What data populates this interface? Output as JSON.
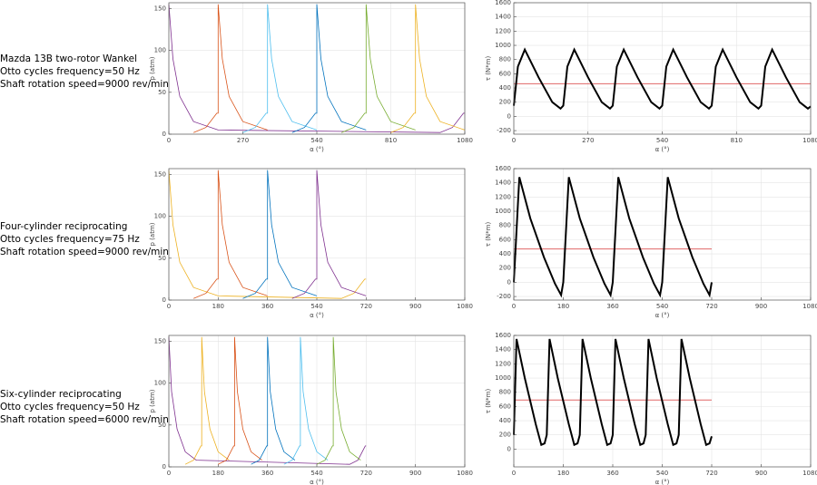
{
  "captions": [
    [
      "Mazda 13B two-rotor Wankel",
      "Otto cycles frequency=50 Hz",
      "Shaft rotation speed=9000 rev/min"
    ],
    [
      "Four-cylinder reciprocating",
      "Otto cycles frequency=75 Hz",
      "Shaft rotation speed=9000 rev/min"
    ],
    [
      "Six-cylinder reciprocating",
      "Otto cycles frequency=50 Hz",
      "Shaft rotation speed=6000 rev/min"
    ]
  ],
  "chart_data": [
    {
      "type": "line",
      "x_label": "α (°)",
      "y_label": "p (atm)",
      "xlim": [
        0,
        1080
      ],
      "ylim": [
        0,
        157
      ],
      "xticks": [
        0,
        270,
        540,
        810,
        1080
      ],
      "yticks": [
        0,
        50,
        100,
        150
      ],
      "grid": true,
      "series": [
        {
          "color": "#7e2f8e",
          "x": [
            0,
            15,
            40,
            90,
            180,
            990,
            1035,
            1075,
            1080
          ],
          "values": [
            155,
            90,
            45,
            15,
            5,
            2,
            8,
            25,
            25
          ]
        },
        {
          "color": "#d95319",
          "x": [
            90,
            135,
            175,
            180,
            180,
            195,
            220,
            270,
            360
          ],
          "values": [
            2,
            8,
            25,
            25,
            155,
            90,
            45,
            15,
            5
          ]
        },
        {
          "color": "#4dbeee",
          "x": [
            270,
            315,
            355,
            360,
            360,
            375,
            400,
            450,
            540
          ],
          "values": [
            2,
            8,
            25,
            25,
            155,
            90,
            45,
            15,
            5
          ]
        },
        {
          "color": "#0072bd",
          "x": [
            450,
            495,
            535,
            540,
            540,
            555,
            580,
            630,
            720
          ],
          "values": [
            2,
            8,
            25,
            25,
            155,
            90,
            45,
            15,
            5
          ]
        },
        {
          "color": "#77ac30",
          "x": [
            630,
            675,
            715,
            720,
            720,
            735,
            760,
            810,
            900
          ],
          "values": [
            2,
            8,
            25,
            25,
            155,
            90,
            45,
            15,
            5
          ]
        },
        {
          "color": "#edb120",
          "x": [
            810,
            855,
            895,
            900,
            900,
            915,
            940,
            990,
            1080
          ],
          "values": [
            2,
            8,
            25,
            25,
            155,
            90,
            45,
            15,
            5
          ]
        }
      ]
    },
    {
      "type": "line",
      "x_label": "α (°)",
      "y_label": "τ (N*m)",
      "xlim": [
        0,
        1080
      ],
      "ylim": [
        -250,
        1600
      ],
      "xticks": [
        0,
        270,
        540,
        810,
        1080
      ],
      "yticks": [
        -200,
        0,
        200,
        400,
        600,
        800,
        1000,
        1200,
        1400,
        1600
      ],
      "grid": true,
      "series": [
        {
          "color": "#e06666",
          "line_width": 1,
          "x": [
            0,
            1080
          ],
          "values": [
            460,
            460
          ]
        },
        {
          "color": "#000000",
          "line_width": 2,
          "x": [
            0,
            15,
            40,
            90,
            140,
            170,
            180,
            195,
            220,
            270,
            320,
            350,
            360,
            375,
            400,
            450,
            500,
            530,
            540,
            555,
            580,
            630,
            680,
            710,
            720,
            735,
            760,
            810,
            860,
            890,
            900,
            915,
            940,
            990,
            1040,
            1070,
            1080
          ],
          "values": [
            150,
            700,
            940,
            550,
            200,
            110,
            150,
            700,
            940,
            550,
            200,
            110,
            150,
            700,
            940,
            550,
            200,
            110,
            150,
            700,
            940,
            550,
            200,
            110,
            150,
            700,
            940,
            550,
            200,
            110,
            150,
            700,
            940,
            550,
            200,
            110,
            140
          ]
        }
      ]
    },
    {
      "type": "line",
      "x_label": "α (°)",
      "y_label": "p (atm)",
      "xlim": [
        0,
        1080
      ],
      "ylim": [
        0,
        157
      ],
      "xticks": [
        0,
        180,
        360,
        540,
        720,
        900,
        1080
      ],
      "yticks": [
        0,
        50,
        100,
        150
      ],
      "grid": true,
      "series": [
        {
          "color": "#edb120",
          "x": [
            0,
            15,
            40,
            90,
            180,
            630,
            675,
            715,
            720
          ],
          "values": [
            155,
            90,
            45,
            15,
            5,
            2,
            8,
            25,
            25
          ]
        },
        {
          "color": "#d95319",
          "x": [
            90,
            135,
            175,
            180,
            180,
            195,
            220,
            270,
            360
          ],
          "values": [
            2,
            8,
            25,
            25,
            155,
            90,
            45,
            15,
            5
          ]
        },
        {
          "color": "#0072bd",
          "x": [
            270,
            315,
            355,
            360,
            360,
            375,
            400,
            450,
            540
          ],
          "values": [
            2,
            8,
            25,
            25,
            155,
            90,
            45,
            15,
            5
          ]
        },
        {
          "color": "#7e2f8e",
          "x": [
            450,
            495,
            535,
            540,
            540,
            555,
            580,
            630,
            720
          ],
          "values": [
            2,
            8,
            25,
            25,
            155,
            90,
            45,
            15,
            5
          ]
        }
      ]
    },
    {
      "type": "line",
      "x_label": "α (°)",
      "y_label": "τ (N*m)",
      "xlim": [
        0,
        1080
      ],
      "ylim": [
        -250,
        1600
      ],
      "xticks": [
        0,
        180,
        360,
        540,
        720,
        900,
        1080
      ],
      "yticks": [
        -200,
        0,
        200,
        400,
        600,
        800,
        1000,
        1200,
        1400,
        1600
      ],
      "grid": true,
      "series": [
        {
          "color": "#e06666",
          "line_width": 1,
          "x": [
            0,
            720
          ],
          "values": [
            470,
            470
          ]
        },
        {
          "color": "#000000",
          "line_width": 2,
          "x": [
            0,
            20,
            60,
            110,
            150,
            172,
            180,
            200,
            240,
            290,
            330,
            352,
            360,
            380,
            420,
            470,
            510,
            532,
            540,
            560,
            600,
            650,
            690,
            712,
            720
          ],
          "values": [
            0,
            1480,
            900,
            350,
            -20,
            -180,
            0,
            1480,
            900,
            350,
            -20,
            -180,
            0,
            1480,
            900,
            350,
            -20,
            -180,
            0,
            1480,
            900,
            350,
            -20,
            -180,
            0
          ]
        }
      ]
    },
    {
      "type": "line",
      "x_label": "α (°)",
      "y_label": "p (atm)",
      "xlim": [
        0,
        1080
      ],
      "ylim": [
        0,
        157
      ],
      "xticks": [
        0,
        180,
        360,
        540,
        720,
        900,
        1080
      ],
      "yticks": [
        0,
        50,
        100,
        150
      ],
      "grid": true,
      "series": [
        {
          "color": "#7e2f8e",
          "x": [
            0,
            10,
            30,
            60,
            100,
            660,
            690,
            717,
            720
          ],
          "values": [
            155,
            90,
            45,
            18,
            8,
            3,
            8,
            25,
            25
          ]
        },
        {
          "color": "#edb120",
          "x": [
            60,
            90,
            117,
            120,
            120,
            130,
            150,
            180,
            220
          ],
          "values": [
            3,
            8,
            25,
            25,
            155,
            90,
            45,
            18,
            8
          ]
        },
        {
          "color": "#d95319",
          "x": [
            180,
            210,
            237,
            240,
            240,
            250,
            270,
            300,
            340
          ],
          "values": [
            3,
            8,
            25,
            25,
            155,
            90,
            45,
            18,
            8
          ]
        },
        {
          "color": "#0072bd",
          "x": [
            300,
            330,
            357,
            360,
            360,
            370,
            390,
            420,
            460
          ],
          "values": [
            3,
            8,
            25,
            25,
            155,
            90,
            45,
            18,
            8
          ]
        },
        {
          "color": "#4dbeee",
          "x": [
            420,
            450,
            477,
            480,
            480,
            490,
            510,
            540,
            580
          ],
          "values": [
            3,
            8,
            25,
            25,
            155,
            90,
            45,
            18,
            8
          ]
        },
        {
          "color": "#77ac30",
          "x": [
            540,
            570,
            597,
            600,
            600,
            610,
            630,
            660,
            700
          ],
          "values": [
            3,
            8,
            25,
            25,
            155,
            90,
            45,
            18,
            8
          ]
        }
      ]
    },
    {
      "type": "line",
      "x_label": "α (°)",
      "y_label": "τ (N*m)",
      "xlim": [
        0,
        1080
      ],
      "ylim": [
        -250,
        1600
      ],
      "xticks": [
        0,
        180,
        360,
        540,
        720,
        900,
        1080
      ],
      "yticks": [
        0,
        200,
        400,
        600,
        800,
        1000,
        1200,
        1400,
        1600
      ],
      "grid": true,
      "series": [
        {
          "color": "#e06666",
          "line_width": 1,
          "x": [
            0,
            720
          ],
          "values": [
            690,
            690
          ]
        },
        {
          "color": "#000000",
          "line_width": 2,
          "x": [
            0,
            10,
            40,
            80,
            100,
            112,
            120,
            130,
            160,
            200,
            220,
            232,
            240,
            250,
            280,
            320,
            340,
            352,
            360,
            370,
            400,
            440,
            460,
            472,
            480,
            490,
            520,
            560,
            580,
            592,
            600,
            610,
            640,
            680,
            700,
            712,
            720
          ],
          "values": [
            200,
            1550,
            1000,
            350,
            60,
            80,
            200,
            1550,
            1000,
            350,
            60,
            80,
            200,
            1550,
            1000,
            350,
            60,
            80,
            200,
            1550,
            1000,
            350,
            60,
            80,
            200,
            1550,
            1000,
            350,
            60,
            80,
            200,
            1550,
            1000,
            350,
            60,
            80,
            180
          ]
        }
      ]
    }
  ]
}
